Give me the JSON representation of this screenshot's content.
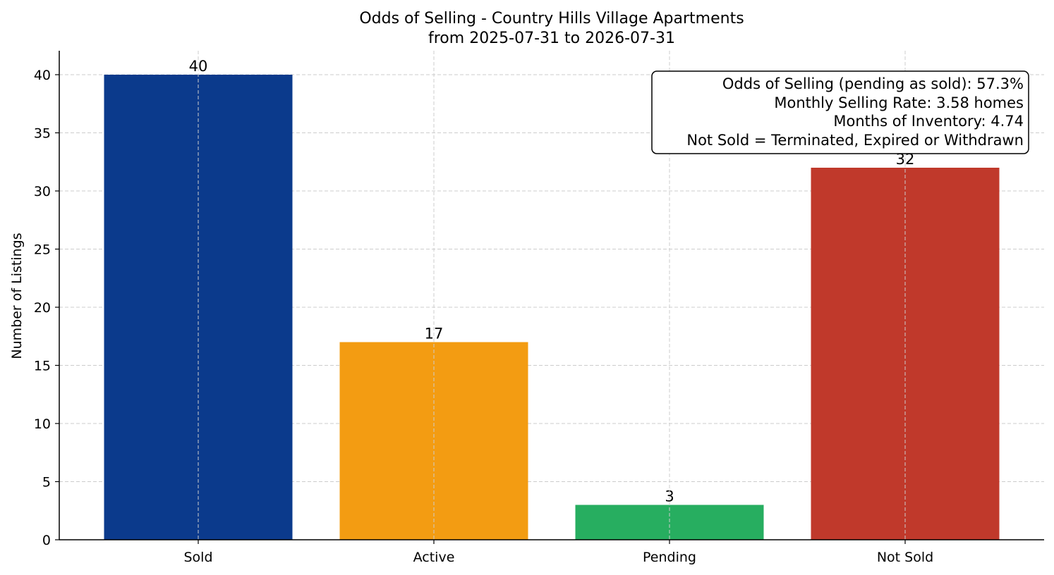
{
  "chart_data": {
    "type": "bar",
    "title": "Odds of Selling - Country Hills Village Apartments",
    "subtitle": "from 2025-07-31 to 2026-07-31",
    "xlabel": "",
    "ylabel": "Number of Listings",
    "categories": [
      "Sold",
      "Active",
      "Pending",
      "Not Sold"
    ],
    "values": [
      40,
      17,
      3,
      32
    ],
    "colors": [
      "#0b3a8c",
      "#f39c12",
      "#27ae60",
      "#c0392b"
    ],
    "ylim": [
      0,
      42
    ],
    "yticks": [
      0,
      5,
      10,
      15,
      20,
      25,
      30,
      35,
      40
    ],
    "grid": true,
    "annotation_box": {
      "placement": "top-right",
      "lines": [
        "Odds of Selling (pending as sold): 57.3%",
        "Monthly Selling Rate: 3.58 homes",
        "Months of Inventory: 4.74",
        "Not Sold = Terminated, Expired or Withdrawn"
      ]
    }
  }
}
